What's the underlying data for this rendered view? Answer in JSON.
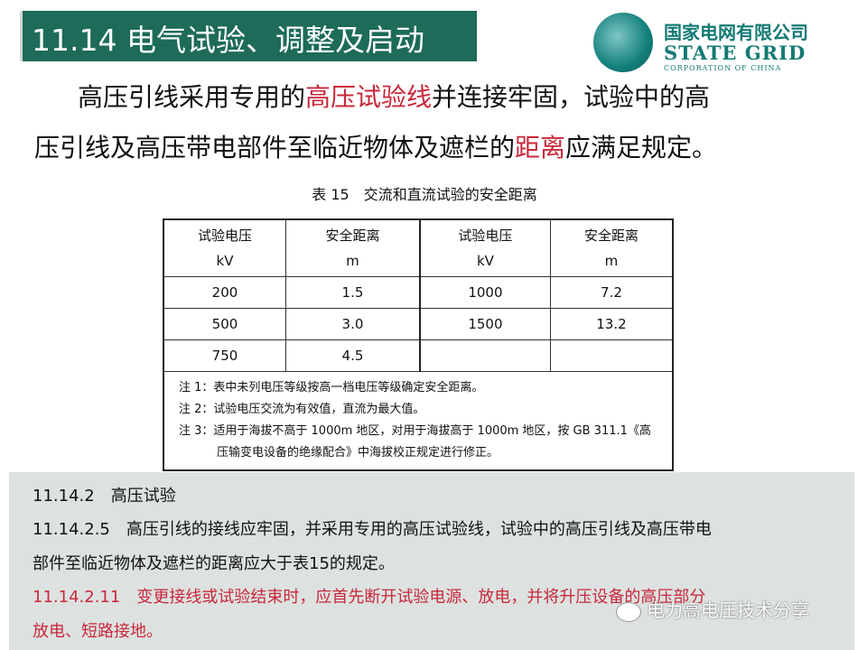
{
  "title": "11.14 电气试验、调整及启动",
  "logo": {
    "cn": "国家电网有限公司",
    "en": "STATE GRID",
    "en_sub": "CORPORATION OF CHINA"
  },
  "intro": {
    "l1a": "高压引线采用专用的",
    "l1b": "高压试验线",
    "l1c": "并连接牢固，试验中的高",
    "l2a": "压引线及高压带电部件至临近物体及遮栏的",
    "l2b": "距离",
    "l2c": "应满足规定。"
  },
  "table": {
    "caption": "表 15　交流和直流试验的安全距离",
    "headers": [
      {
        "name": "试验电压",
        "unit": "kV"
      },
      {
        "name": "安全距离",
        "unit": "m"
      },
      {
        "name": "试验电压",
        "unit": "kV"
      },
      {
        "name": "安全距离",
        "unit": "m"
      }
    ],
    "rows": [
      [
        "200",
        "1.5",
        "1000",
        "7.2"
      ],
      [
        "500",
        "3.0",
        "1500",
        "13.2"
      ],
      [
        "750",
        "4.5",
        "",
        ""
      ]
    ],
    "notes": [
      "注 1：表中未列电压等级按高一档电压等级确定安全距离。",
      "注 2：试验电压交流为有效值，直流为最大值。",
      "注 3：适用于海拔不高于 1000m 地区，对用于海拔高于 1000m 地区，按 GB 311.1《高",
      "压输变电设备的绝缘配合》中海拔校正规定进行修正。"
    ]
  },
  "standard": {
    "s1": "11.14.2　高压试验",
    "s2a": "11.14.2.5　高压引线的接线应牢固，并采用专用的高压试验线，试验中的高压引线及高压带电",
    "s2b": "部件至临近物体及遮栏的距离应大于表15的规定。",
    "s3a": "11.14.2.11　变更接线或试验结束时，应首先断开试验电源、放电，并将升压设备的高压部分",
    "s3b": "放电、短路接地。"
  },
  "watermark": "电力高电压技术分享",
  "colors": {
    "banner": "#1d6b58",
    "highlight": "#c8283a",
    "brand": "#127a74"
  }
}
